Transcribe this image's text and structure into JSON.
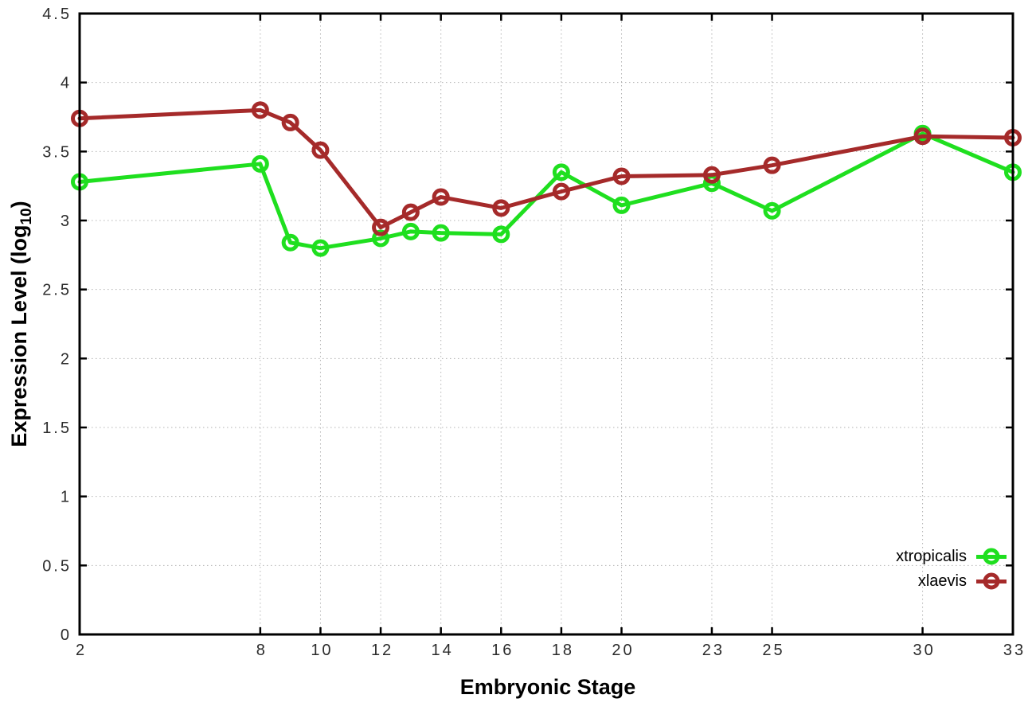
{
  "figure": {
    "background": "#ffffff",
    "xlabel": "Embryonic Stage",
    "ylabel_main": "Expression Level (log",
    "ylabel_sub": "10",
    "ylabel_close": ")",
    "axis_color": "#000000",
    "grid_color": "#b3b3b3",
    "tick_label_color": "#2b2b2b"
  },
  "chart_data": {
    "type": "line",
    "title": "",
    "xlabel": "Embryonic Stage",
    "ylabel": "Expression Level (log10)",
    "x": [
      2,
      8,
      9,
      10,
      12,
      13,
      14,
      16,
      18,
      20,
      23,
      25,
      30,
      33
    ],
    "x_tick_labels": [
      "2",
      "8",
      "10",
      "12",
      "14",
      "16",
      "18",
      "20",
      "23",
      "25",
      "30",
      "33"
    ],
    "y_tick_labels": [
      "0",
      "0.5",
      "1",
      "1.5",
      "2",
      "2.5",
      "3",
      "3.5",
      "4",
      "4.5"
    ],
    "xlim": [
      2,
      33
    ],
    "ylim": [
      0,
      4.5
    ],
    "grid": true,
    "grid_style": "dotted",
    "legend_position": "bottom-right",
    "marker": "open-circle",
    "series": [
      {
        "name": "xtropicalis",
        "color": "#1fdf1f",
        "values": [
          3.28,
          3.41,
          2.84,
          2.8,
          2.87,
          2.92,
          2.91,
          2.9,
          3.35,
          3.11,
          3.27,
          3.07,
          3.63,
          3.35
        ]
      },
      {
        "name": "xlaevis",
        "color": "#a52a2a",
        "values": [
          3.74,
          3.8,
          3.71,
          3.51,
          2.95,
          3.06,
          3.17,
          3.09,
          3.21,
          3.32,
          3.33,
          3.4,
          3.61,
          3.6
        ]
      }
    ]
  }
}
